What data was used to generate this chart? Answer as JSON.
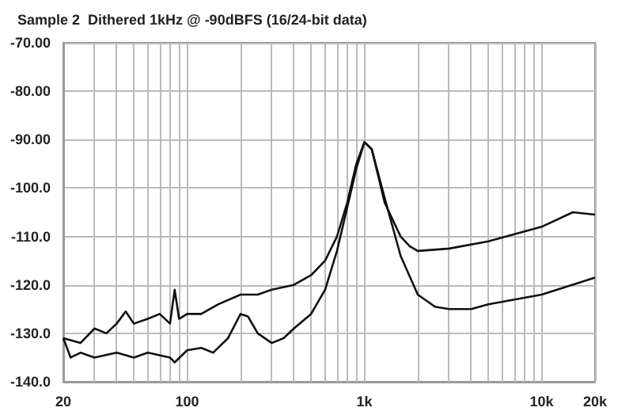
{
  "chart_data": {
    "type": "line",
    "title": "Sample 2  Dithered 1kHz @ -90dBFS (16/24-bit data)",
    "log": "x",
    "grid": true,
    "marker": "none",
    "line_style": "solid",
    "xlim": [
      20,
      20000
    ],
    "xticks": [
      {
        "value": 20,
        "label": "20"
      },
      {
        "value": 30,
        "label": null
      },
      {
        "value": 40,
        "label": null
      },
      {
        "value": 50,
        "label": null
      },
      {
        "value": 60,
        "label": null
      },
      {
        "value": 70,
        "label": null
      },
      {
        "value": 80,
        "label": null
      },
      {
        "value": 90,
        "label": null
      },
      {
        "value": 100,
        "label": "100"
      },
      {
        "value": 200,
        "label": null
      },
      {
        "value": 300,
        "label": null
      },
      {
        "value": 400,
        "label": null
      },
      {
        "value": 500,
        "label": null
      },
      {
        "value": 600,
        "label": null
      },
      {
        "value": 700,
        "label": null
      },
      {
        "value": 800,
        "label": null
      },
      {
        "value": 900,
        "label": null
      },
      {
        "value": 1000,
        "label": "1k"
      },
      {
        "value": 2000,
        "label": null
      },
      {
        "value": 3000,
        "label": null
      },
      {
        "value": 4000,
        "label": null
      },
      {
        "value": 5000,
        "label": null
      },
      {
        "value": 6000,
        "label": null
      },
      {
        "value": 7000,
        "label": null
      },
      {
        "value": 8000,
        "label": null
      },
      {
        "value": 9000,
        "label": null
      },
      {
        "value": 10000,
        "label": "10k"
      },
      {
        "value": 20000,
        "label": "20k"
      }
    ],
    "ylim": [
      -140,
      -70
    ],
    "yticks": [
      {
        "value": -140,
        "label": "-140.0"
      },
      {
        "value": -130,
        "label": "-130.0"
      },
      {
        "value": -120,
        "label": "-120.0"
      },
      {
        "value": -110,
        "label": "-110.0"
      },
      {
        "value": -100,
        "label": "-100.0"
      },
      {
        "value": -90,
        "label": "-90.00"
      },
      {
        "value": -80,
        "label": "-80.00"
      },
      {
        "value": -70,
        "label": "-70.00"
      }
    ],
    "series": [
      {
        "color": "#111111",
        "x": [
          20,
          25,
          30,
          35,
          40,
          45,
          50,
          60,
          70,
          80,
          85,
          90,
          100,
          120,
          150,
          200,
          250,
          300,
          400,
          500,
          600,
          700,
          800,
          900,
          1000,
          1100,
          1300,
          1600,
          1800,
          2000,
          3000,
          5000,
          10000,
          15000,
          20000
        ],
        "values": [
          -131,
          -132,
          -129,
          -130,
          -128,
          -125.5,
          -128,
          -127,
          -126,
          -128,
          -121,
          -127,
          -126,
          -126,
          -124,
          -122,
          -122,
          -121,
          -120,
          -118,
          -115,
          -110,
          -103,
          -95,
          -90.5,
          -92,
          -103,
          -110,
          -112,
          -113,
          -112.5,
          -111,
          -108,
          -105,
          -105.5
        ]
      },
      {
        "color": "#111111",
        "x": [
          20,
          22,
          25,
          30,
          40,
          50,
          60,
          80,
          85,
          100,
          120,
          140,
          170,
          200,
          220,
          250,
          300,
          350,
          400,
          500,
          600,
          700,
          800,
          900,
          1000,
          1100,
          1300,
          1600,
          2000,
          2500,
          3000,
          4000,
          5000,
          10000,
          20000
        ],
        "values": [
          -131,
          -135,
          -134,
          -135,
          -134,
          -135,
          -134,
          -135,
          -136,
          -133.5,
          -133,
          -134,
          -131,
          -126,
          -126.5,
          -130,
          -132,
          -131,
          -129,
          -126,
          -121,
          -113,
          -104,
          -96,
          -90.5,
          -92,
          -102,
          -114,
          -122,
          -124.5,
          -125,
          -125,
          -124,
          -122,
          -118.5
        ]
      }
    ]
  }
}
